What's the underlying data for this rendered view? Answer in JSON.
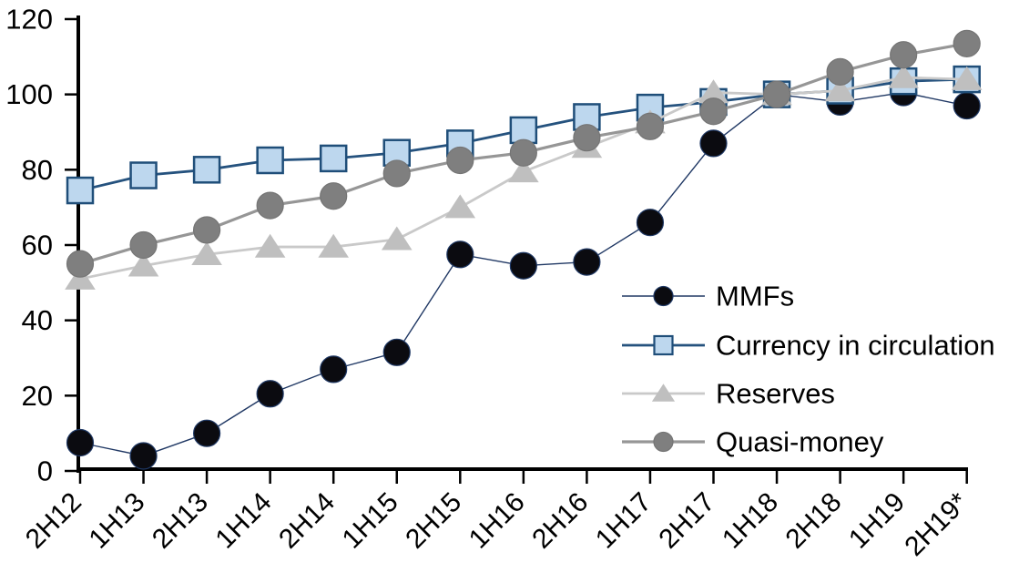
{
  "chart_data": {
    "type": "line",
    "title": "",
    "xlabel": "",
    "ylabel": "",
    "grid": false,
    "legend_position": "inside-right",
    "ylim": [
      0,
      120
    ],
    "yticks": [
      0,
      20,
      40,
      60,
      80,
      100,
      120
    ],
    "categories": [
      "2H12",
      "1H13",
      "2H13",
      "1H14",
      "2H14",
      "1H15",
      "2H15",
      "1H16",
      "2H16",
      "1H17",
      "2H17",
      "1H18",
      "2H18",
      "1H19",
      "2H19*"
    ],
    "series": [
      {
        "name": "MMFs",
        "marker": "circle",
        "marker_fill": "#0b0b10",
        "marker_stroke": "#1F3864",
        "line_color": "#203864",
        "line_width": 1.4,
        "values": [
          7.5,
          4,
          10,
          20.5,
          27,
          31.5,
          57.5,
          54.5,
          55.5,
          66,
          87,
          100,
          98,
          100.5,
          97
        ]
      },
      {
        "name": "Currency in circulation",
        "marker": "square",
        "marker_fill": "#BDD7EE",
        "marker_stroke": "#1F4E79",
        "line_color": "#25527E",
        "line_width": 2.8,
        "values": [
          74.5,
          78.5,
          80,
          82.5,
          83,
          84.5,
          87,
          90.5,
          94,
          96.5,
          98,
          100,
          101,
          103.5,
          104
        ]
      },
      {
        "name": "Reserves",
        "marker": "triangle",
        "marker_fill": "#BFBFBF",
        "marker_stroke": "#BFBFBF",
        "line_color": "#C9C9C9",
        "line_width": 2.8,
        "values": [
          51,
          54.5,
          57.5,
          59.5,
          59.5,
          61.5,
          70,
          79.5,
          86,
          92.5,
          100.5,
          100,
          101,
          104.5,
          104
        ]
      },
      {
        "name": "Quasi-money",
        "marker": "circle",
        "marker_fill": "#7F7F7F",
        "marker_stroke": "#757575",
        "line_color": "#969696",
        "line_width": 3.2,
        "values": [
          55,
          60,
          64,
          70.5,
          73,
          79,
          82.5,
          84.5,
          88.5,
          91.5,
          95.5,
          100,
          106,
          110.5,
          113.5
        ]
      }
    ],
    "axis_color": "#000000"
  }
}
